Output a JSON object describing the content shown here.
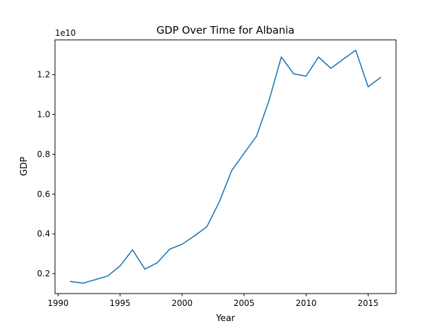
{
  "chart_data": {
    "type": "line",
    "title": "GDP Over Time for Albania",
    "xlabel": "Year",
    "ylabel": "GDP",
    "y_offset_label": "1e10",
    "xlim": [
      1989.75,
      2017.25
    ],
    "ylim": [
      0.1,
      1.375
    ],
    "y_scale_note": "y values in units of 1e10",
    "xticks": [
      1990,
      1995,
      2000,
      2005,
      2010,
      2015
    ],
    "yticks": [
      0.2,
      0.4,
      0.6,
      0.8,
      1.0,
      1.2
    ],
    "ytick_labels": [
      "0.2",
      "0.4",
      "0.6",
      "0.8",
      "1.0",
      "1.2"
    ],
    "grid": false,
    "series": [
      {
        "color": "#1f77b4",
        "x": [
          1991,
          1992,
          1993,
          1994,
          1995,
          1996,
          1997,
          1998,
          1999,
          2000,
          2001,
          2002,
          2003,
          2004,
          2005,
          2006,
          2007,
          2008,
          2009,
          2010,
          2011,
          2012,
          2013,
          2014,
          2015,
          2016
        ],
        "y": [
          0.161,
          0.152,
          0.17,
          0.188,
          0.239,
          0.32,
          0.223,
          0.255,
          0.323,
          0.348,
          0.39,
          0.436,
          0.561,
          0.718,
          0.805,
          0.891,
          1.068,
          1.289,
          1.204,
          1.193,
          1.289,
          1.232,
          1.278,
          1.323,
          1.139,
          1.186
        ]
      }
    ]
  }
}
